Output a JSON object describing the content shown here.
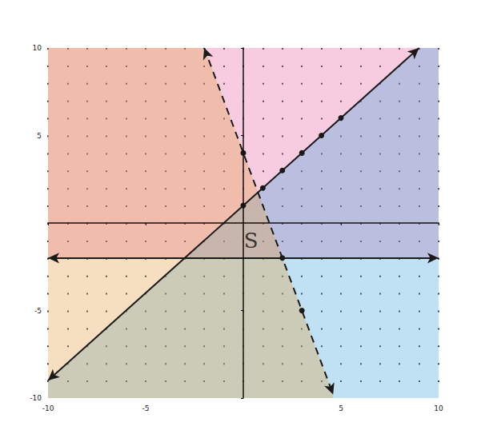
{
  "chart_data": {
    "type": "line",
    "xlim": [
      -10,
      10
    ],
    "ylim": [
      -10,
      10
    ],
    "xticks": [
      -10,
      -5,
      5,
      10
    ],
    "yticks": [
      -10,
      -5,
      5,
      10
    ],
    "grid": true,
    "series": [
      {
        "type": "area",
        "color": "#e86aa6",
        "x": [
          -10,
          10,
          10,
          -10
        ],
        "values": [
          -2,
          -2,
          10,
          10
        ]
      },
      {
        "type": "area",
        "color": "#4aa8dc",
        "x": [
          -10,
          9,
          10,
          10,
          -10
        ],
        "values": [
          -9,
          10,
          10,
          -10,
          -10
        ]
      },
      {
        "type": "area",
        "color": "#e3a24a",
        "x": [
          -10,
          -2,
          4.6,
          4.6,
          -10
        ],
        "values": [
          10,
          10,
          -9.8,
          -10,
          -10
        ]
      },
      {
        "type": "line",
        "color": "#1a1a1a",
        "line_style": "solid",
        "marker": "circle",
        "x": [
          -10,
          0,
          1,
          2,
          3,
          4,
          5,
          9
        ],
        "values": [
          -9,
          1,
          2,
          3,
          4,
          5,
          6,
          10
        ]
      },
      {
        "type": "line",
        "color": "#1a1a1a",
        "line_style": "dashed",
        "marker": "circle",
        "x": [
          -2,
          0,
          2,
          3,
          4.6
        ],
        "values": [
          10,
          4,
          -2,
          -5,
          -9.8
        ]
      },
      {
        "type": "line",
        "color": "#1a1a1a",
        "line_style": "solid",
        "x": [
          -10,
          10
        ],
        "values": [
          -2,
          -2
        ]
      }
    ],
    "annotations": [
      {
        "text": "S",
        "x": 0.4,
        "y": -1
      }
    ]
  }
}
